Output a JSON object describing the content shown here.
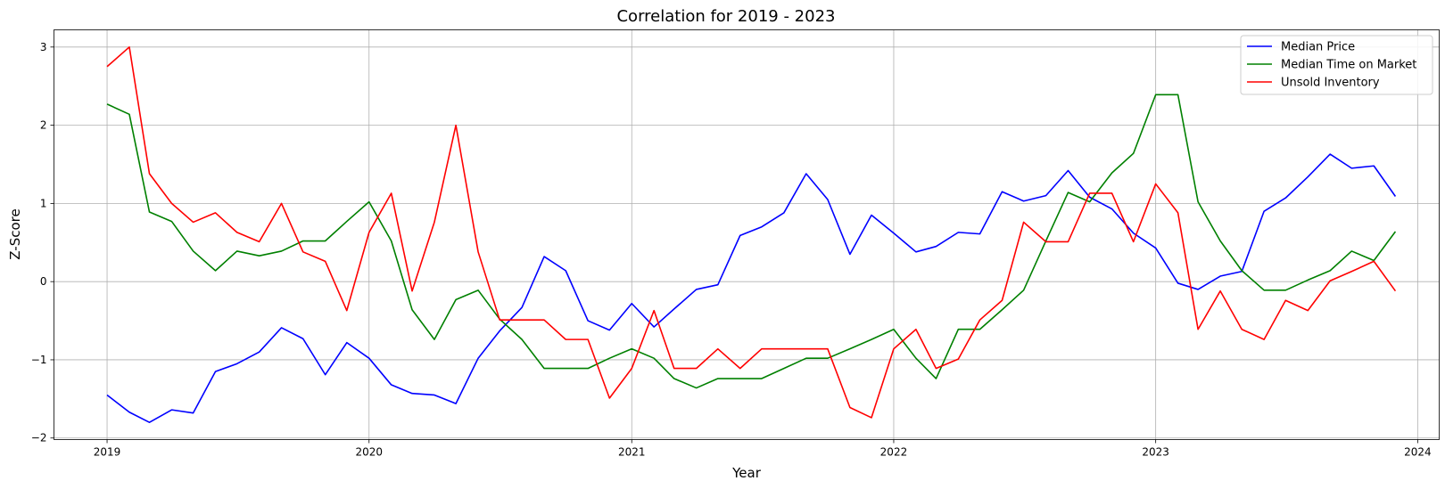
{
  "chart_data": {
    "type": "line",
    "title": "Correlation for 2019 - 2023",
    "xlabel": "Year",
    "ylabel": "Z-Score",
    "xlim": [
      "2018-10-19",
      "2024-01-31"
    ],
    "ylim": [
      -2.02,
      3.22
    ],
    "x_ticks": [
      "2019",
      "2020",
      "2021",
      "2022",
      "2023",
      "2024"
    ],
    "y_ticks": [
      -2,
      -1,
      0,
      1,
      2,
      3
    ],
    "y_tick_labels": [
      "−2",
      "−1",
      "0",
      "1",
      "2",
      "3"
    ],
    "grid": true,
    "legend_position": "top-right",
    "x": [
      "2019-01",
      "2019-02",
      "2019-03",
      "2019-04",
      "2019-05",
      "2019-06",
      "2019-07",
      "2019-08",
      "2019-09",
      "2019-10",
      "2019-11",
      "2019-12",
      "2020-01",
      "2020-02",
      "2020-03",
      "2020-04",
      "2020-05",
      "2020-06",
      "2020-07",
      "2020-08",
      "2020-09",
      "2020-10",
      "2020-11",
      "2020-12",
      "2021-01",
      "2021-02",
      "2021-03",
      "2021-04",
      "2021-05",
      "2021-06",
      "2021-07",
      "2021-08",
      "2021-09",
      "2021-10",
      "2021-11",
      "2021-12",
      "2022-01",
      "2022-02",
      "2022-03",
      "2022-04",
      "2022-05",
      "2022-06",
      "2022-07",
      "2022-08",
      "2022-09",
      "2022-10",
      "2022-11",
      "2022-12",
      "2023-01",
      "2023-02",
      "2023-03",
      "2023-04",
      "2023-05",
      "2023-06",
      "2023-07",
      "2023-08",
      "2023-09",
      "2023-10",
      "2023-11",
      "2023-12"
    ],
    "series": [
      {
        "name": "Median Price",
        "color": "#0000ff",
        "values": [
          -1.45,
          -1.67,
          -1.8,
          -1.64,
          -1.68,
          -1.15,
          -1.05,
          -0.9,
          -0.59,
          -0.73,
          -1.19,
          -0.78,
          -0.98,
          -1.32,
          -1.43,
          -1.45,
          -1.56,
          -0.98,
          -0.63,
          -0.33,
          0.32,
          0.14,
          -0.5,
          -0.62,
          -0.28,
          -0.58,
          -0.35,
          -0.1,
          -0.04,
          0.59,
          0.7,
          0.88,
          1.38,
          1.05,
          0.35,
          0.85,
          0.62,
          0.38,
          0.45,
          0.63,
          0.61,
          1.15,
          1.03,
          1.1,
          1.42,
          1.08,
          0.93,
          0.62,
          0.43,
          -0.02,
          -0.1,
          0.07,
          0.13,
          0.9,
          1.07,
          1.34,
          1.63,
          1.45,
          1.48,
          1.09
        ]
      },
      {
        "name": "Median Time on Market",
        "color": "#008000",
        "values": [
          2.27,
          2.14,
          0.89,
          0.77,
          0.39,
          0.14,
          0.39,
          0.33,
          0.39,
          0.52,
          0.52,
          0.77,
          1.02,
          0.52,
          -0.36,
          -0.74,
          -0.23,
          -0.11,
          -0.48,
          -0.74,
          -1.11,
          -1.11,
          -1.11,
          -0.98,
          -0.86,
          -0.98,
          -1.24,
          -1.36,
          -1.24,
          -1.24,
          -1.24,
          -1.11,
          -0.98,
          -0.98,
          -0.86,
          -0.74,
          -0.61,
          -0.98,
          -1.24,
          -0.61,
          -0.61,
          -0.36,
          -0.11,
          0.52,
          1.14,
          1.02,
          1.39,
          1.64,
          2.39,
          2.39,
          1.02,
          0.52,
          0.14,
          -0.11,
          -0.11,
          0.02,
          0.14,
          0.39,
          0.27,
          0.64
        ]
      },
      {
        "name": "Unsold Inventory",
        "color": "#ff0000",
        "values": [
          2.75,
          3.0,
          1.38,
          1.0,
          0.76,
          0.88,
          0.63,
          0.51,
          1.0,
          0.38,
          0.26,
          -0.37,
          0.63,
          1.13,
          -0.12,
          0.76,
          2.0,
          0.38,
          -0.49,
          -0.49,
          -0.49,
          -0.74,
          -0.74,
          -1.49,
          -1.11,
          -0.37,
          -1.11,
          -1.11,
          -0.86,
          -1.11,
          -0.86,
          -0.86,
          -0.86,
          -0.86,
          -1.61,
          -1.74,
          -0.86,
          -0.61,
          -1.11,
          -0.99,
          -0.49,
          -0.24,
          0.76,
          0.51,
          0.51,
          1.13,
          1.13,
          0.51,
          1.25,
          0.88,
          -0.61,
          -0.12,
          -0.61,
          -0.74,
          -0.24,
          -0.37,
          0.01,
          0.13,
          0.26,
          -0.12
        ]
      }
    ]
  }
}
